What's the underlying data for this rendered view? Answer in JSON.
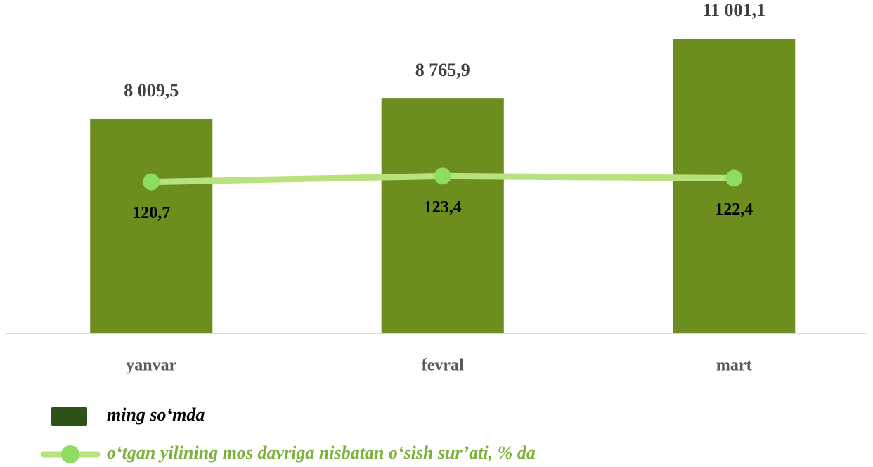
{
  "chart_data": {
    "type": "bar_line",
    "categories": [
      "yanvar",
      "fevral",
      "mart"
    ],
    "series": [
      {
        "name": "ming so‘mda",
        "type": "bar",
        "color": "#6b8e1f",
        "legend_color": "#2e5218",
        "values": [
          8009.5,
          8765.9,
          11001.1
        ],
        "value_labels": [
          "8 009,5",
          "8 765,9",
          "11 001,1"
        ]
      },
      {
        "name": "o‘tgan yilining mos davriga nisbatan o‘sish sur’ati, % da",
        "type": "line",
        "axis": "y2",
        "color": "#b8e27e",
        "marker_color": "#8fdc62",
        "legend_text_color": "#7cb13a",
        "values": [
          120.7,
          123.4,
          122.4
        ],
        "value_labels": [
          "120,7",
          "123,4",
          "122,4"
        ]
      }
    ],
    "ylim": [
      0,
      12000
    ],
    "y2lim": [
      50,
      200
    ]
  }
}
